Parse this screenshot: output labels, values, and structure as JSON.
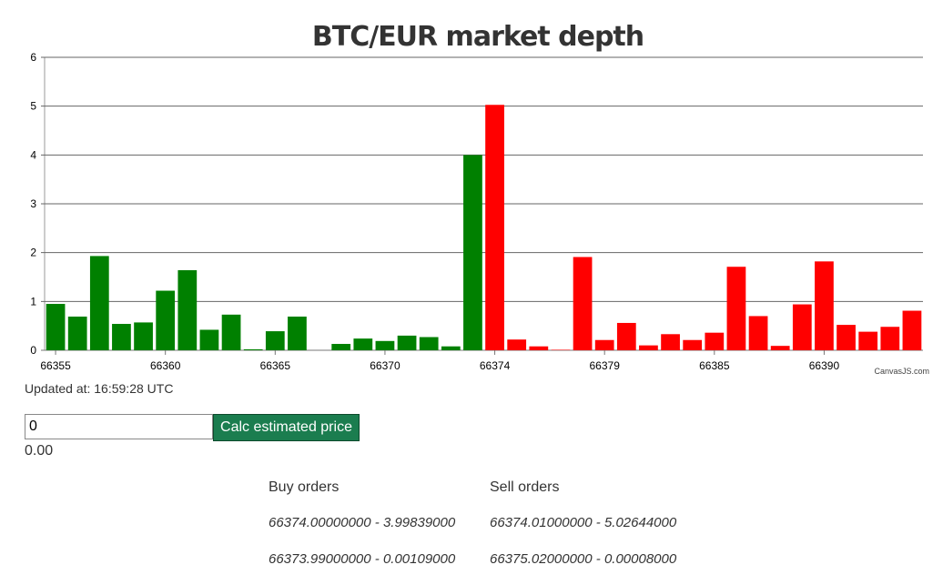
{
  "chart_data": {
    "type": "bar",
    "title": "BTC/EUR market depth",
    "xlabel": "",
    "ylabel": "",
    "ylim": [
      0,
      6
    ],
    "yticks": [
      "0",
      "1",
      "2",
      "3",
      "4",
      "5",
      "6"
    ],
    "xticks": [
      "66355",
      "66360",
      "66365",
      "66370",
      "66374",
      "66379",
      "66385",
      "66390"
    ],
    "grid": true,
    "series": [
      {
        "side": "buy",
        "color": "#008000",
        "values": [
          0.95,
          0.69,
          1.93,
          0.54,
          0.57,
          1.22,
          1.64,
          0.42,
          0.73,
          0.02,
          0.39,
          0.69,
          0.0,
          0.13,
          0.24,
          0.19,
          0.3,
          0.27,
          0.08,
          3.99839
        ]
      },
      {
        "side": "sell",
        "color": "#ff0000",
        "values": [
          5.02644,
          0.22,
          0.08,
          0.01,
          1.91,
          0.21,
          0.56,
          0.1,
          0.33,
          0.21,
          0.36,
          1.71,
          0.7,
          0.09,
          0.94,
          1.82,
          0.52,
          0.38,
          0.48,
          0.81
        ]
      }
    ]
  },
  "credit": "CanvasJS.com",
  "updated": "Updated at: 16:59:28 UTC",
  "calc": {
    "input_value": "0",
    "button_label": "Calc estimated price",
    "result": "0.00"
  },
  "orders": {
    "buy_header": "Buy orders",
    "sell_header": "Sell orders",
    "buy": [
      "66374.00000000 - 3.99839000",
      "66373.99000000 - 0.00109000"
    ],
    "sell": [
      "66374.01000000 - 5.02644000",
      "66375.02000000 - 0.00008000"
    ]
  }
}
